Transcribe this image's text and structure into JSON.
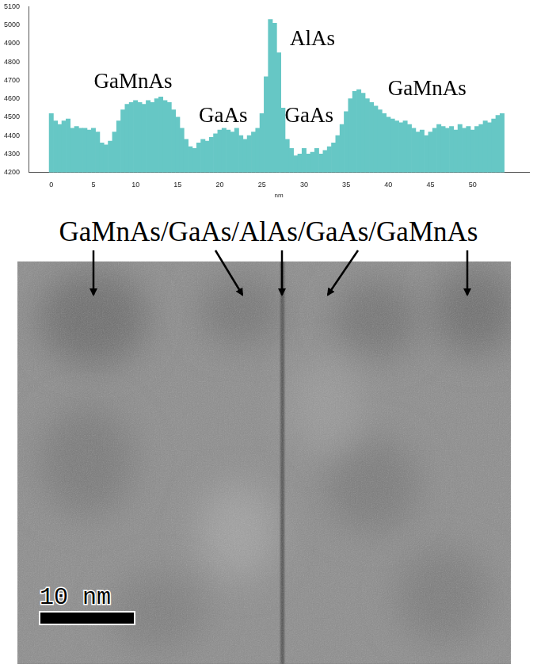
{
  "chart_data": {
    "type": "bar",
    "x": [
      0,
      0.5,
      1,
      1.5,
      2,
      2.5,
      3,
      3.5,
      4,
      4.5,
      5,
      5.5,
      6,
      6.5,
      7,
      7.5,
      8,
      8.5,
      9,
      9.5,
      10,
      10.5,
      11,
      11.5,
      12,
      12.5,
      13,
      13.5,
      14,
      14.5,
      15,
      15.5,
      16,
      16.5,
      17,
      17.5,
      18,
      18.5,
      19,
      19.5,
      20,
      20.5,
      21,
      21.5,
      22,
      22.5,
      23,
      23.5,
      24,
      24.5,
      25,
      25.5,
      26,
      26.5,
      27,
      27.5,
      28,
      28.5,
      29,
      29.5,
      30,
      30.5,
      31,
      31.5,
      32,
      32.5,
      33,
      33.5,
      34,
      34.5,
      35,
      35.5,
      36,
      36.5,
      37,
      37.5,
      38,
      38.5,
      39,
      39.5,
      40,
      40.5,
      41,
      41.5,
      42,
      42.5,
      43,
      43.5,
      44,
      44.5,
      45,
      45.5,
      46,
      46.5,
      47,
      47.5,
      48,
      48.5,
      49,
      49.5,
      50,
      50.5,
      51,
      51.5,
      52,
      52.5,
      53,
      53.5
    ],
    "values": [
      4520,
      4480,
      4460,
      4480,
      4490,
      4440,
      4450,
      4440,
      4440,
      4430,
      4440,
      4420,
      4360,
      4350,
      4370,
      4420,
      4480,
      4540,
      4570,
      4580,
      4590,
      4580,
      4570,
      4590,
      4580,
      4600,
      4610,
      4590,
      4580,
      4540,
      4500,
      4440,
      4380,
      4340,
      4330,
      4360,
      4380,
      4370,
      4390,
      4410,
      4430,
      4440,
      4430,
      4420,
      4440,
      4400,
      4380,
      4400,
      4420,
      4440,
      4520,
      4720,
      5030,
      5010,
      4850,
      4550,
      4380,
      4330,
      4290,
      4300,
      4330,
      4300,
      4310,
      4330,
      4300,
      4320,
      4340,
      4360,
      4400,
      4460,
      4530,
      4600,
      4640,
      4650,
      4630,
      4600,
      4580,
      4560,
      4540,
      4520,
      4500,
      4490,
      4480,
      4470,
      4480,
      4460,
      4440,
      4420,
      4430,
      4400,
      4420,
      4440,
      4460,
      4450,
      4440,
      4450,
      4430,
      4460,
      4440,
      4450,
      4430,
      4450,
      4460,
      4480,
      4470,
      4490,
      4510,
      4520
    ],
    "color": "#66c7c5",
    "xlim": [
      0,
      54
    ],
    "xticks": [
      0,
      5,
      10,
      15,
      20,
      25,
      30,
      35,
      40,
      45,
      50
    ],
    "ylim": [
      4200,
      5100
    ],
    "yticks": [
      4200,
      4300,
      4400,
      4500,
      4600,
      4700,
      4800,
      4900,
      5000,
      5100
    ],
    "x_label": "nm",
    "grid": false,
    "annotations": [
      "GaMnAs",
      "GaAs",
      "AlAs",
      "GaAs",
      "GaMnAs"
    ]
  },
  "figure": {
    "heading": "GaMnAs/GaAs/AlAs/GaAs/GaMnAs",
    "scale_bar": "10 nm"
  }
}
